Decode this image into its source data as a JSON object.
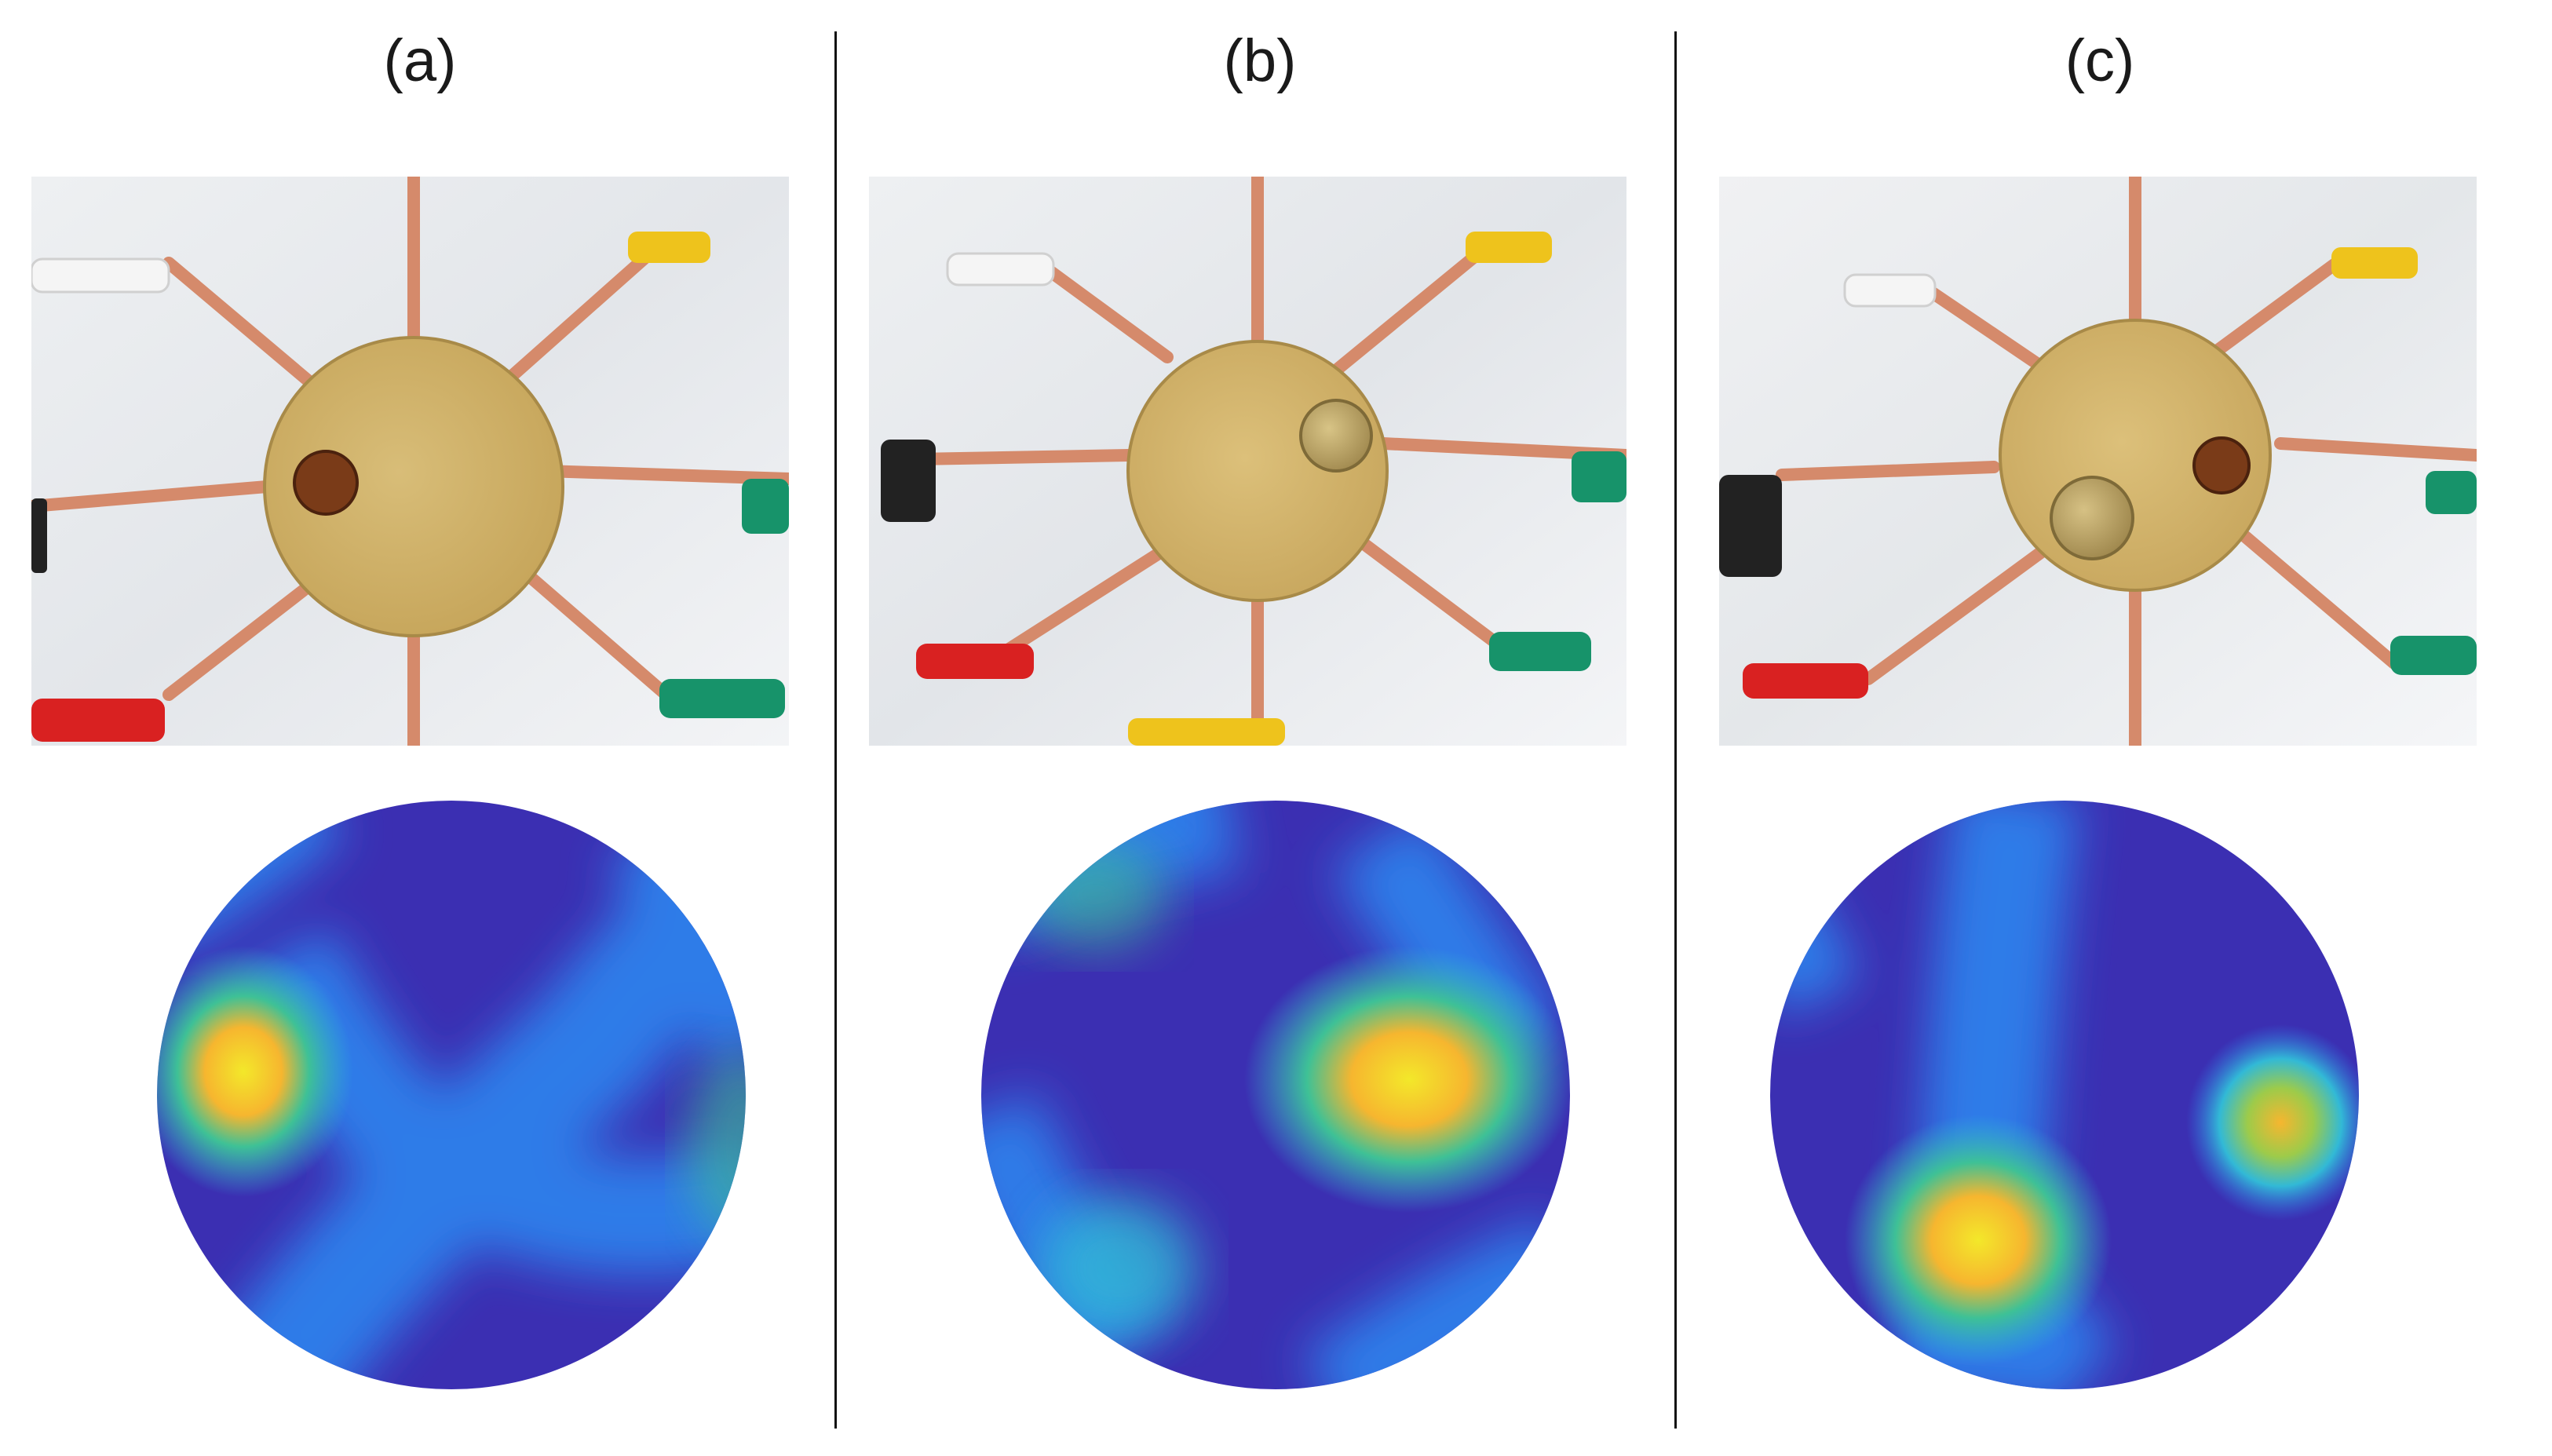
{
  "panels": [
    {
      "label": "(a)",
      "objects": [
        "copper-coin"
      ]
    },
    {
      "label": "(b)",
      "objects": [
        "gold-coin"
      ]
    },
    {
      "label": "(c)",
      "objects": [
        "gold-coin",
        "copper-coin"
      ]
    }
  ],
  "colors": {
    "background_blue": "#3b2fb2",
    "mid_blue": "#2f7ce8",
    "cyan": "#32b9d6",
    "green": "#3ec196",
    "yellow": "#f3e82a",
    "orange": "#f6b62f",
    "plate": "#d9b86c",
    "copper_strip": "#d8876b",
    "clip_red": "#d92121",
    "clip_green": "#17936a",
    "clip_yellow": "#eec31c",
    "clip_white": "#f2f2f2",
    "clip_black": "#222222"
  }
}
